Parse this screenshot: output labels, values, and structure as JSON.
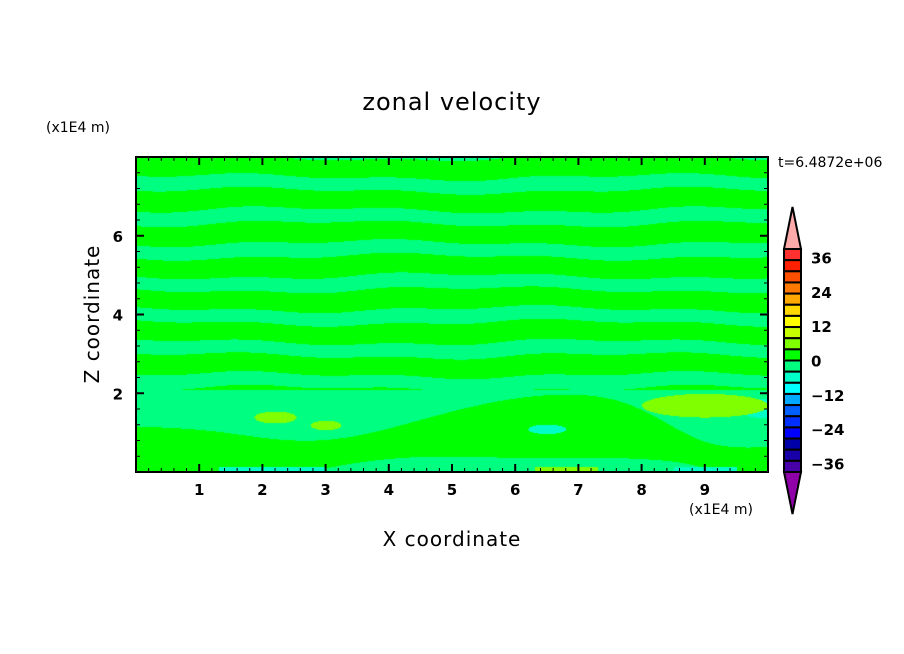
{
  "chart_data": {
    "type": "heatmap",
    "title": "zonal velocity",
    "xlabel": "X coordinate",
    "ylabel": "Z coordinate",
    "x_scale_label": "(x1E4 m)",
    "y_scale_label": "(x1E4 m)",
    "time_label": "t=6.4872e+06",
    "xlim": [
      0,
      10
    ],
    "ylim": [
      0,
      8
    ],
    "x_ticks": [
      "1",
      "2",
      "3",
      "4",
      "5",
      "6",
      "7",
      "8",
      "9"
    ],
    "y_ticks": [
      "2",
      "4",
      "6"
    ],
    "colorbar": {
      "range": [
        -39,
        39
      ],
      "labels": [
        "36",
        "24",
        "12",
        "0",
        "−12",
        "−24",
        "−36"
      ],
      "label_values": [
        36,
        24,
        12,
        0,
        -12,
        -24,
        -36
      ],
      "colors_top_to_bottom": [
        "#ff3030",
        "#ff2000",
        "#ff5000",
        "#ff7800",
        "#ffa800",
        "#ffd800",
        "#ffff00",
        "#c8ff00",
        "#80ff00",
        "#00ff00",
        "#00ff80",
        "#00ffc8",
        "#00ffff",
        "#00a8ff",
        "#0060ff",
        "#0030ff",
        "#0000ff",
        "#0000a8",
        "#1800a8",
        "#4800a8"
      ],
      "over_color": "#ffaaaa",
      "under_color": "#9000a8"
    },
    "field_colors": {
      "positive": "#00ff00",
      "negative": "#00ff80",
      "strong_positive": "#80ff00",
      "strong_negative": "#00ffc8"
    }
  }
}
